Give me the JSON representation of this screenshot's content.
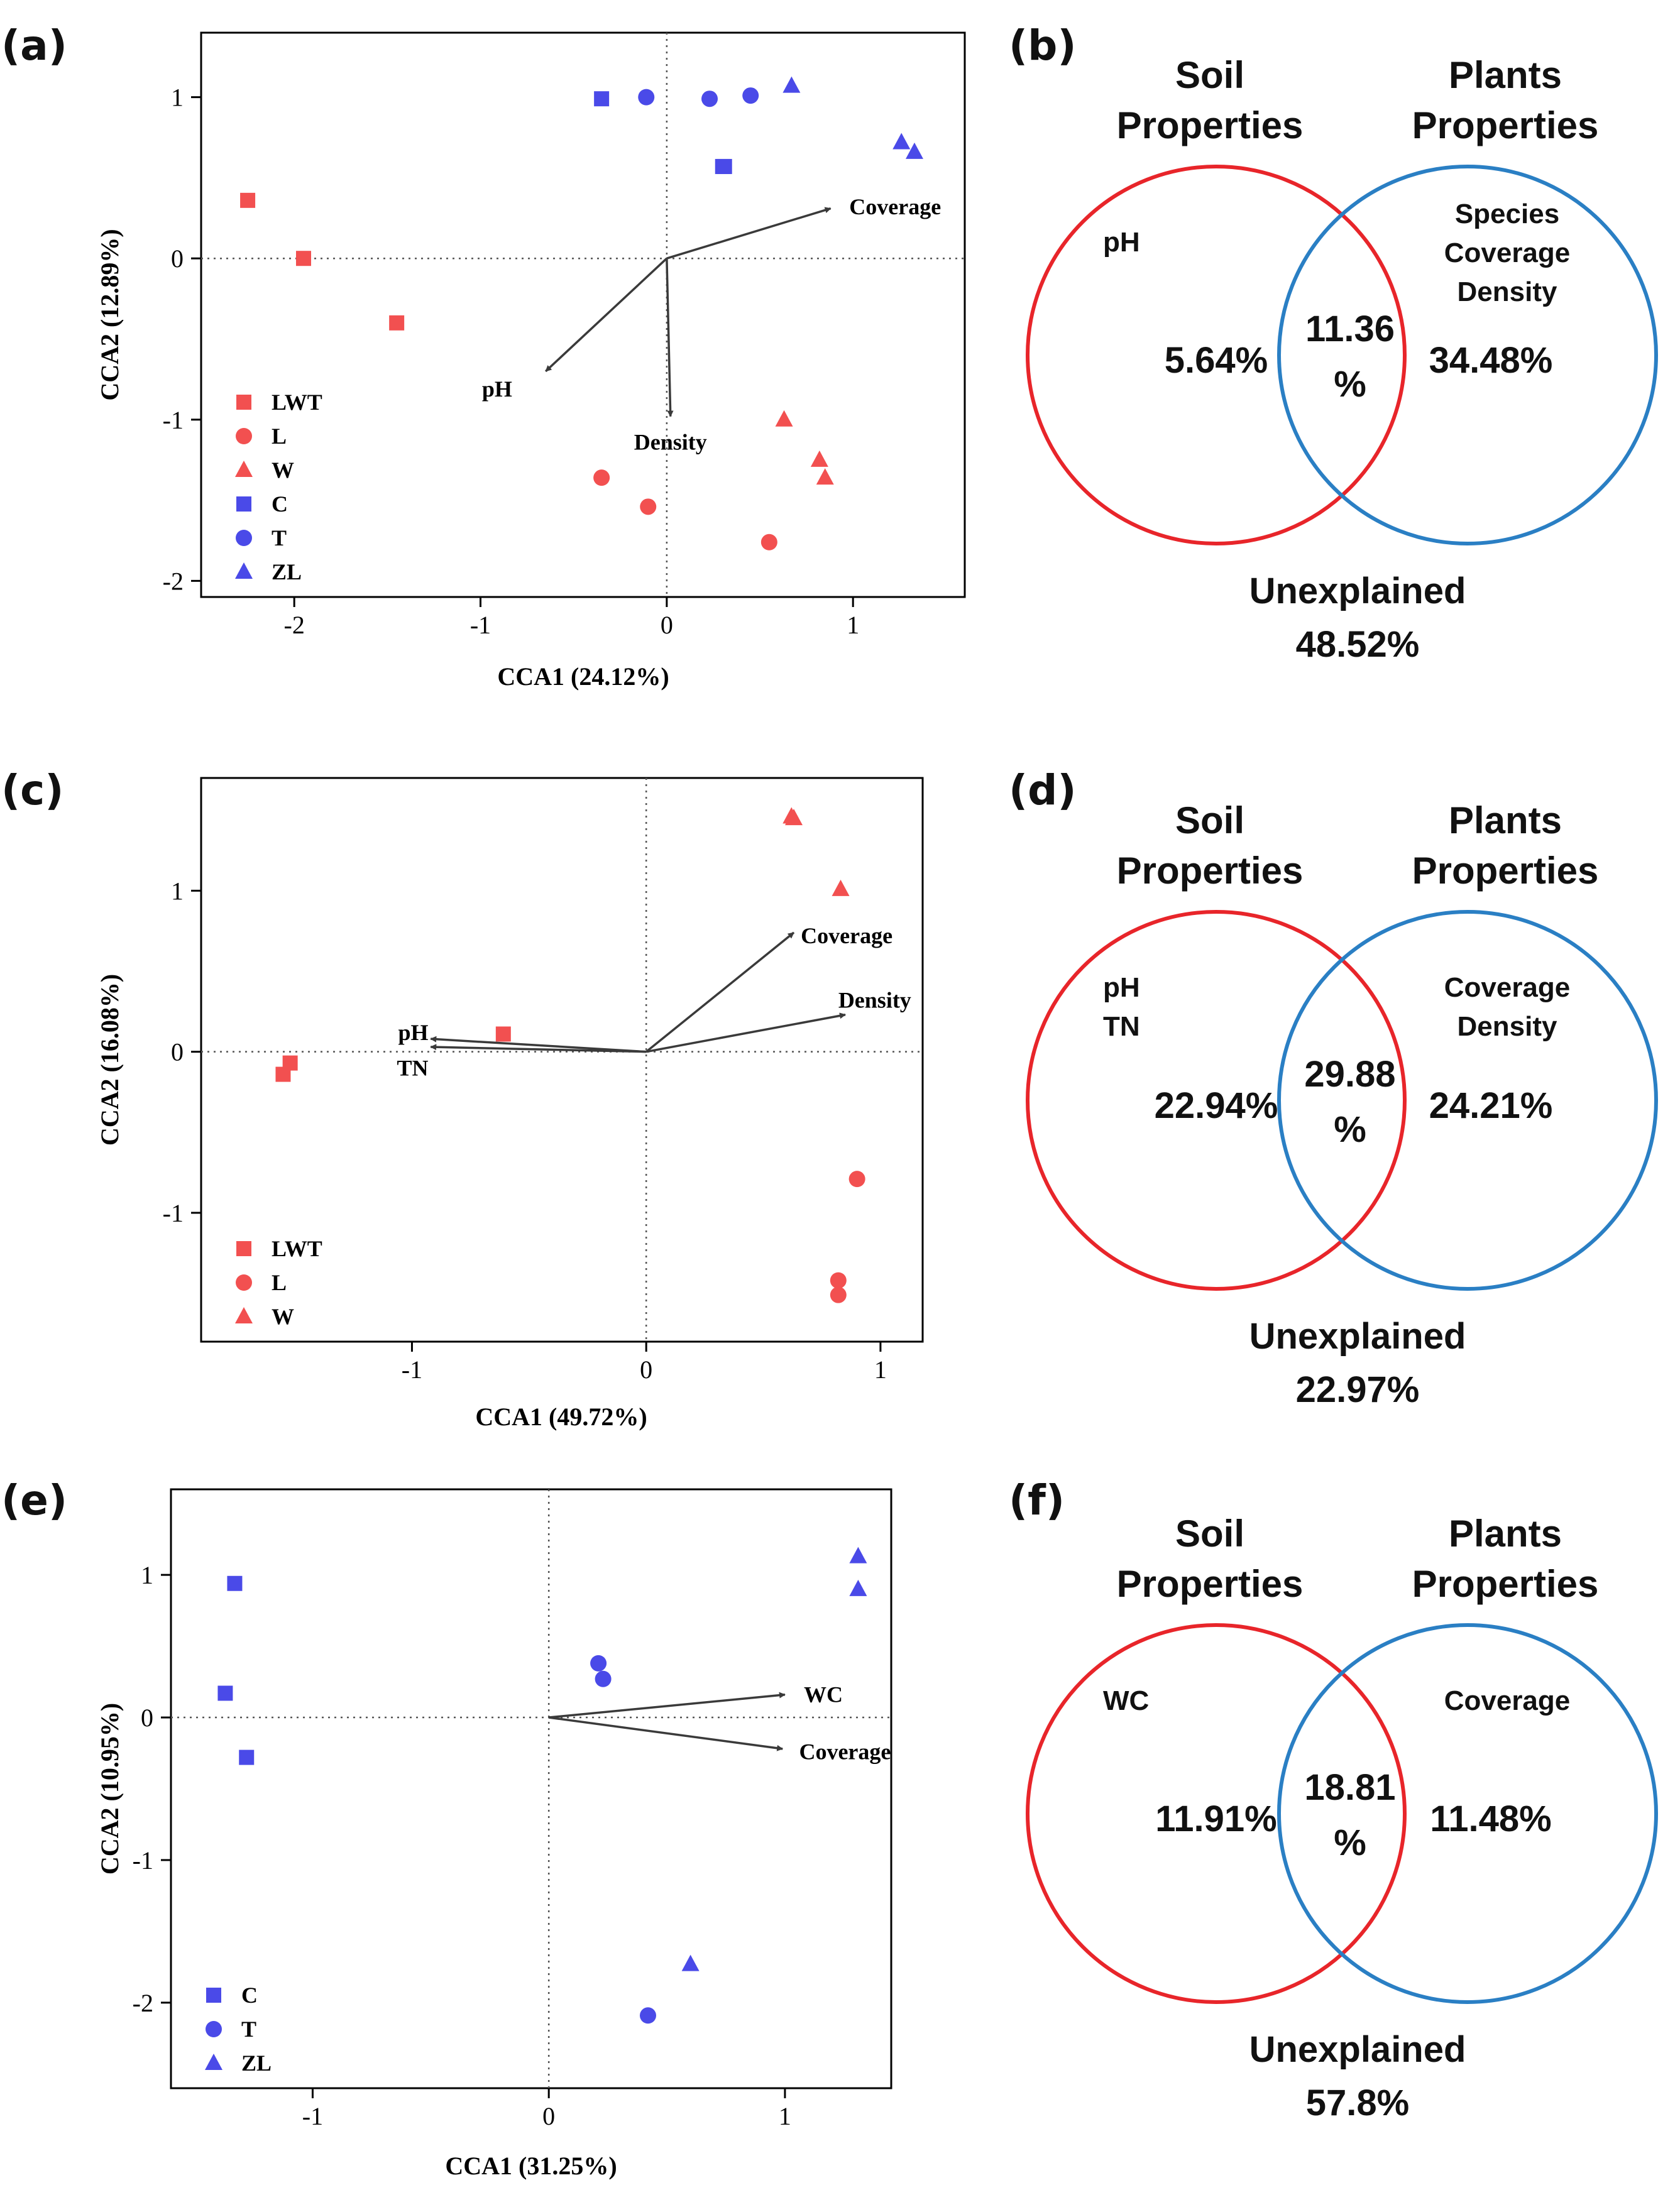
{
  "figure": {
    "panels": {
      "a": "(a)",
      "b": "(b)",
      "c": "(c)",
      "d": "(d)",
      "e": "(e)",
      "f": "(f)"
    }
  },
  "colors": {
    "red": "#f25050",
    "blue": "#4a4ae8",
    "venn_red": "#e8252a",
    "venn_blue": "#2a7fc4",
    "arrow": "#3a3a3a",
    "axis": "#000000"
  },
  "chart_data": [
    {
      "type": "scatter",
      "panel": "a",
      "xlabel": "CCA1 (24.12%)",
      "ylabel": "CCA2 (12.89%)",
      "xlim": [
        -2.5,
        1.6
      ],
      "ylim": [
        -2.1,
        1.4
      ],
      "xticks": [
        -2,
        -1,
        0,
        1
      ],
      "yticks": [
        -2,
        -1,
        0,
        1
      ],
      "legend_position": "bottom-left",
      "series": [
        {
          "name": "LWT",
          "marker": "square",
          "color": "red",
          "points": [
            [
              -2.25,
              0.36
            ],
            [
              -1.95,
              0.0
            ],
            [
              -1.45,
              -0.4
            ]
          ]
        },
        {
          "name": "L",
          "marker": "circle",
          "color": "red",
          "points": [
            [
              -0.35,
              -1.36
            ],
            [
              -0.1,
              -1.54
            ],
            [
              0.55,
              -1.76
            ]
          ]
        },
        {
          "name": "W",
          "marker": "triangle",
          "color": "red",
          "points": [
            [
              0.63,
              -1.0
            ],
            [
              0.82,
              -1.25
            ],
            [
              0.85,
              -1.36
            ]
          ]
        },
        {
          "name": "C",
          "marker": "square",
          "color": "blue",
          "points": [
            [
              -0.35,
              0.99
            ],
            [
              0.3,
              0.57
            ],
            [
              0.31,
              0.57
            ]
          ]
        },
        {
          "name": "T",
          "marker": "circle",
          "color": "blue",
          "points": [
            [
              -0.11,
              1.0
            ],
            [
              0.23,
              0.99
            ],
            [
              0.45,
              1.01
            ]
          ]
        },
        {
          "name": "ZL",
          "marker": "triangle",
          "color": "blue",
          "points": [
            [
              0.67,
              1.07
            ],
            [
              1.26,
              0.72
            ],
            [
              1.33,
              0.66
            ]
          ]
        }
      ],
      "arrows": [
        {
          "label": "Coverage",
          "to": [
            0.88,
            0.31
          ],
          "label_at": [
            0.98,
            0.32
          ],
          "anchor": "start"
        },
        {
          "label": "pH",
          "to": [
            -0.65,
            -0.7
          ],
          "label_at": [
            -0.83,
            -0.81
          ],
          "anchor": "end"
        },
        {
          "label": "Density",
          "to": [
            0.02,
            -0.98
          ],
          "label_at": [
            0.02,
            -1.14
          ],
          "anchor": "middle"
        }
      ]
    },
    {
      "type": "scatter",
      "panel": "c",
      "xlabel": "CCA1 (49.72%)",
      "ylabel": "CCA2 (16.08%)",
      "xlim": [
        -1.9,
        1.18
      ],
      "ylim": [
        -1.8,
        1.7
      ],
      "xticks": [
        -1,
        0,
        1
      ],
      "yticks": [
        -1,
        0,
        1
      ],
      "legend_position": "bottom-left",
      "series": [
        {
          "name": "LWT",
          "marker": "square",
          "color": "red",
          "points": [
            [
              -1.55,
              -0.14
            ],
            [
              -1.52,
              -0.07
            ],
            [
              -0.61,
              0.11
            ]
          ]
        },
        {
          "name": "L",
          "marker": "circle",
          "color": "red",
          "points": [
            [
              0.9,
              -0.79
            ],
            [
              0.82,
              -1.42
            ],
            [
              0.82,
              -1.51
            ]
          ]
        },
        {
          "name": "W",
          "marker": "triangle",
          "color": "red",
          "points": [
            [
              0.62,
              1.46
            ],
            [
              0.63,
              1.45
            ],
            [
              0.83,
              1.01
            ]
          ]
        }
      ],
      "arrows": [
        {
          "label": "Coverage",
          "to": [
            0.63,
            0.74
          ],
          "label_at": [
            0.66,
            0.72
          ],
          "anchor": "start"
        },
        {
          "label": "Density",
          "to": [
            0.85,
            0.23
          ],
          "label_at": [
            0.82,
            0.32
          ],
          "anchor": "start"
        },
        {
          "label": "pH",
          "to": [
            -0.92,
            0.08
          ],
          "label_at": [
            -0.93,
            0.12
          ],
          "anchor": "end"
        },
        {
          "label": "TN",
          "to": [
            -0.92,
            0.03
          ],
          "label_at": [
            -0.93,
            -0.1
          ],
          "anchor": "end"
        }
      ]
    },
    {
      "type": "scatter",
      "panel": "e",
      "xlabel": "CCA1 (31.25%)",
      "ylabel": "CCA2 (10.95%)",
      "xlim": [
        -1.6,
        1.45
      ],
      "ylim": [
        -2.6,
        1.6
      ],
      "xticks": [
        -1,
        0,
        1
      ],
      "yticks": [
        -2,
        -1,
        0,
        1
      ],
      "legend_position": "bottom-left",
      "series": [
        {
          "name": "C",
          "marker": "square",
          "color": "blue",
          "points": [
            [
              -1.33,
              0.94
            ],
            [
              -1.37,
              0.17
            ],
            [
              -1.28,
              -0.28
            ]
          ]
        },
        {
          "name": "T",
          "marker": "circle",
          "color": "blue",
          "points": [
            [
              0.21,
              0.38
            ],
            [
              0.23,
              0.27
            ],
            [
              0.42,
              -2.09
            ]
          ]
        },
        {
          "name": "ZL",
          "marker": "triangle",
          "color": "blue",
          "points": [
            [
              1.31,
              1.13
            ],
            [
              1.31,
              0.9
            ],
            [
              0.6,
              -1.73
            ]
          ]
        }
      ],
      "arrows": [
        {
          "label": "WC",
          "to": [
            1.0,
            0.16
          ],
          "label_at": [
            1.08,
            0.16
          ],
          "anchor": "start"
        },
        {
          "label": "Coverage",
          "to": [
            0.99,
            -0.22
          ],
          "label_at": [
            1.06,
            -0.24
          ],
          "anchor": "start"
        }
      ]
    },
    {
      "type": "venn",
      "panel": "b",
      "left_title": [
        "Soil",
        "Properties"
      ],
      "right_title": [
        "Plants",
        "Properties"
      ],
      "left_items": [
        "pH"
      ],
      "right_items": [
        "Species",
        "Coverage",
        "Density"
      ],
      "left_only": "5.64%",
      "overlap": [
        "11.36",
        "%"
      ],
      "right_only": "34.48%",
      "unexplained_label": "Unexplained",
      "unexplained_value": "48.52%"
    },
    {
      "type": "venn",
      "panel": "d",
      "left_title": [
        "Soil",
        "Properties"
      ],
      "right_title": [
        "Plants",
        "Properties"
      ],
      "left_items": [
        "pH",
        "TN"
      ],
      "right_items": [
        "Coverage",
        "Density"
      ],
      "left_only": "22.94%",
      "overlap": [
        "29.88",
        "%"
      ],
      "right_only": "24.21%",
      "unexplained_label": "Unexplained",
      "unexplained_value": "22.97%"
    },
    {
      "type": "venn",
      "panel": "f",
      "left_title": [
        "Soil",
        "Properties"
      ],
      "right_title": [
        "Plants",
        "Properties"
      ],
      "left_items": [
        "WC"
      ],
      "right_items": [
        "Coverage"
      ],
      "left_only": "11.91%",
      "overlap": [
        "18.81",
        "%"
      ],
      "right_only": "11.48%",
      "unexplained_label": "Unexplained",
      "unexplained_value": "57.8%"
    }
  ]
}
